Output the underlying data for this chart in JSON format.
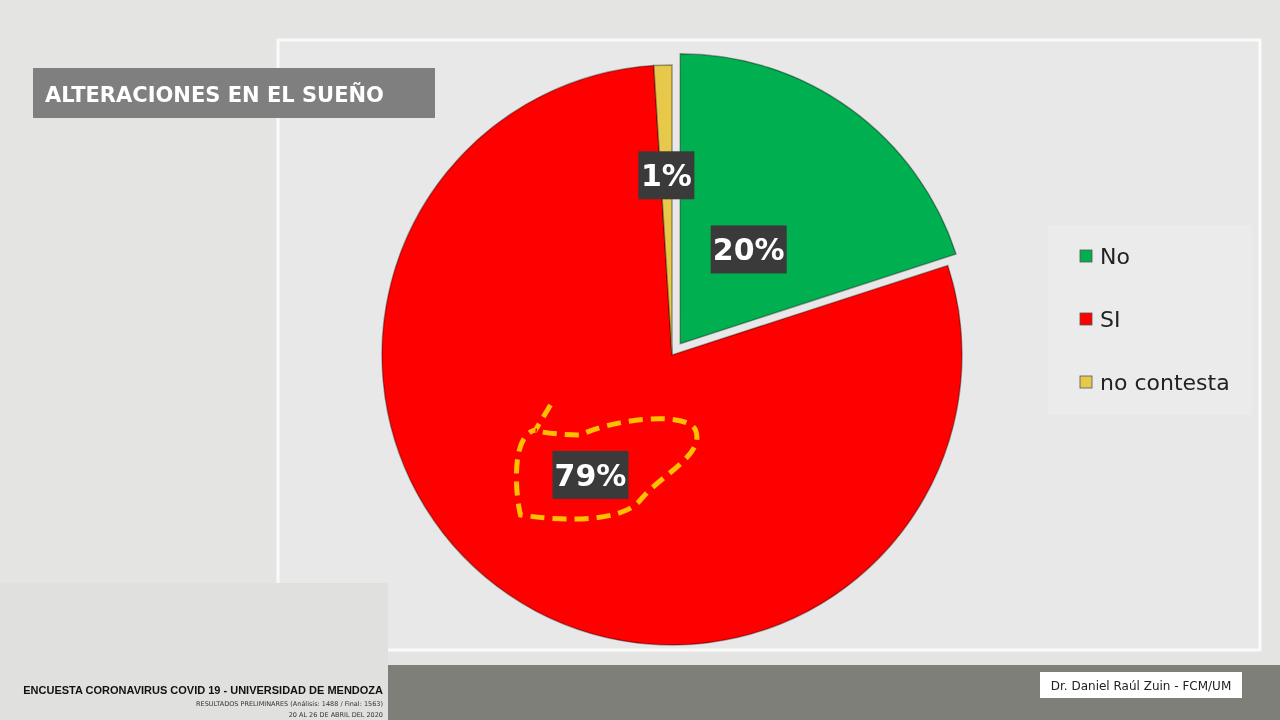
{
  "chart_data": {
    "type": "pie",
    "title": "ALTERACIONES EN EL SUEÑO",
    "categories": [
      "No",
      "SI",
      "no contesta"
    ],
    "values": [
      20,
      79,
      1
    ],
    "colors": [
      "#00b050",
      "#ff0000",
      "#e6c84a"
    ],
    "value_labels": [
      "20%",
      "79%",
      "1%"
    ],
    "legend": "right",
    "annotations": [
      "ENCUESTA CORONAVIRUS COVID 19 - UNIVERSIDAD DE MENDOZA",
      "RESULTADOS PRELIMINARES (Análisis: 1488 / Final: 1563)",
      "20 AL 26 DE ABRIL DEL 2020",
      "Dr. Daniel Raúl Zuin - FCM/UM"
    ]
  }
}
